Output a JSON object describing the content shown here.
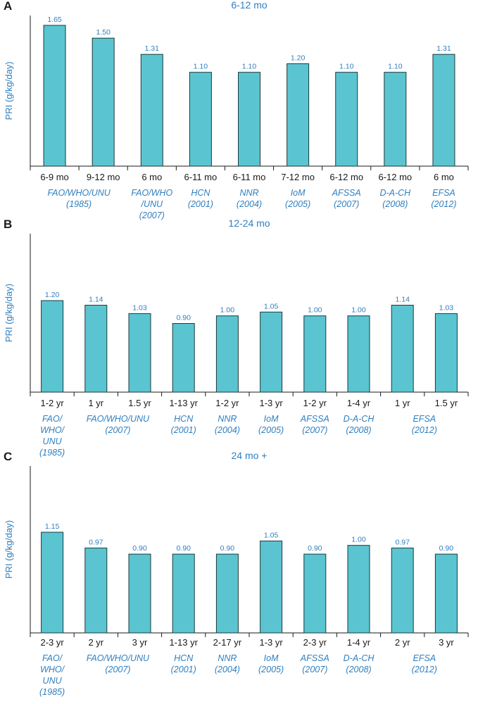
{
  "colors": {
    "bar_fill": "#5bc4d1",
    "bar_stroke": "#1a3a3a",
    "axis": "#1a1a1a",
    "text_blue": "#2f7fbf",
    "label_dark": "#1a1a1a"
  },
  "chart_data": [
    {
      "type": "bar",
      "panel": "A",
      "title": "6-12 mo",
      "ylabel": "PRI (g/kg/day)",
      "ylim": [
        0,
        1.8
      ],
      "categories": [
        "6-9 mo",
        "9-12 mo",
        "6 mo",
        "6-11 mo",
        "6-11 mo",
        "7-12 mo",
        "6-12 mo",
        "6-12 mo",
        "6 mo"
      ],
      "values": [
        1.65,
        1.5,
        1.31,
        1.1,
        1.1,
        1.2,
        1.1,
        1.1,
        1.31
      ],
      "value_labels": [
        "1.65",
        "1.50",
        "1.31",
        "1.10",
        "1.10",
        "1.20",
        "1.10",
        "1.10",
        "1.31"
      ],
      "groups": [
        {
          "lines": [
            "FAO/WHO/UNU",
            "(1985)"
          ],
          "start": 0,
          "end": 1
        },
        {
          "lines": [
            "FAO/WHO",
            "/UNU",
            "(2007)"
          ],
          "start": 2,
          "end": 2
        },
        {
          "lines": [
            "HCN",
            "(2001)"
          ],
          "start": 3,
          "end": 3
        },
        {
          "lines": [
            "NNR",
            "(2004)"
          ],
          "start": 4,
          "end": 4
        },
        {
          "lines": [
            "IoM",
            "(2005)"
          ],
          "start": 5,
          "end": 5
        },
        {
          "lines": [
            "AFSSA",
            "(2007)"
          ],
          "start": 6,
          "end": 6
        },
        {
          "lines": [
            "D-A-CH",
            "(2008)"
          ],
          "start": 7,
          "end": 7
        },
        {
          "lines": [
            "EFSA",
            "(2012)"
          ],
          "start": 8,
          "end": 8
        }
      ]
    },
    {
      "type": "bar",
      "panel": "B",
      "title": "12-24 mo",
      "ylabel": "PRI (g/kg/day)",
      "ylim": [
        0,
        1.8
      ],
      "categories": [
        "1-2 yr",
        "1 yr",
        "1.5 yr",
        "1-13 yr",
        "1-2 yr",
        "1-3 yr",
        "1-2 yr",
        "1-4 yr",
        "1 yr",
        "1.5 yr"
      ],
      "values": [
        1.2,
        1.14,
        1.03,
        0.9,
        1.0,
        1.05,
        1.0,
        1.0,
        1.14,
        1.03
      ],
      "value_labels": [
        "1.20",
        "1.14",
        "1.03",
        "0.90",
        "1.00",
        "1.05",
        "1.00",
        "1.00",
        "1.14",
        "1.03"
      ],
      "groups": [
        {
          "lines": [
            "FAO/",
            "WHO/",
            "UNU",
            "(1985)"
          ],
          "start": 0,
          "end": 0
        },
        {
          "lines": [
            "FAO/WHO/UNU",
            "(2007)"
          ],
          "start": 1,
          "end": 2
        },
        {
          "lines": [
            "HCN",
            "(2001)"
          ],
          "start": 3,
          "end": 3
        },
        {
          "lines": [
            "NNR",
            "(2004)"
          ],
          "start": 4,
          "end": 4
        },
        {
          "lines": [
            "IoM",
            "(2005)"
          ],
          "start": 5,
          "end": 5
        },
        {
          "lines": [
            "AFSSA",
            "(2007)"
          ],
          "start": 6,
          "end": 6
        },
        {
          "lines": [
            "D-A-CH",
            "(2008)"
          ],
          "start": 7,
          "end": 7
        },
        {
          "lines": [
            "EFSA",
            "(2012)"
          ],
          "start": 8,
          "end": 9
        }
      ]
    },
    {
      "type": "bar",
      "panel": "C",
      "title": "24 mo +",
      "ylabel": "PRI (g/kg/day)",
      "ylim": [
        0,
        1.8
      ],
      "categories": [
        "2-3 yr",
        "2 yr",
        "3 yr",
        "1-13 yr",
        "2-17 yr",
        "1-3 yr",
        "2-3 yr",
        "1-4 yr",
        "2 yr",
        "3 yr"
      ],
      "values": [
        1.15,
        0.97,
        0.9,
        0.9,
        0.9,
        1.05,
        0.9,
        1.0,
        0.97,
        0.9
      ],
      "value_labels": [
        "1.15",
        "0.97",
        "0.90",
        "0.90",
        "0.90",
        "1.05",
        "0.90",
        "1.00",
        "0.97",
        "0.90"
      ],
      "groups": [
        {
          "lines": [
            "FAO/",
            "WHO/",
            "UNU",
            "(1985)"
          ],
          "start": 0,
          "end": 0
        },
        {
          "lines": [
            "FAO/WHO/UNU",
            "(2007)"
          ],
          "start": 1,
          "end": 2
        },
        {
          "lines": [
            "HCN",
            "(2001)"
          ],
          "start": 3,
          "end": 3
        },
        {
          "lines": [
            "NNR",
            "(2004)"
          ],
          "start": 4,
          "end": 4
        },
        {
          "lines": [
            "IoM",
            "(2005)"
          ],
          "start": 5,
          "end": 5
        },
        {
          "lines": [
            "AFSSA",
            "(2007)"
          ],
          "start": 6,
          "end": 6
        },
        {
          "lines": [
            "D-A-CH",
            "(2008)"
          ],
          "start": 7,
          "end": 7
        },
        {
          "lines": [
            "EFSA",
            "(2012)"
          ],
          "start": 8,
          "end": 9
        }
      ]
    }
  ]
}
